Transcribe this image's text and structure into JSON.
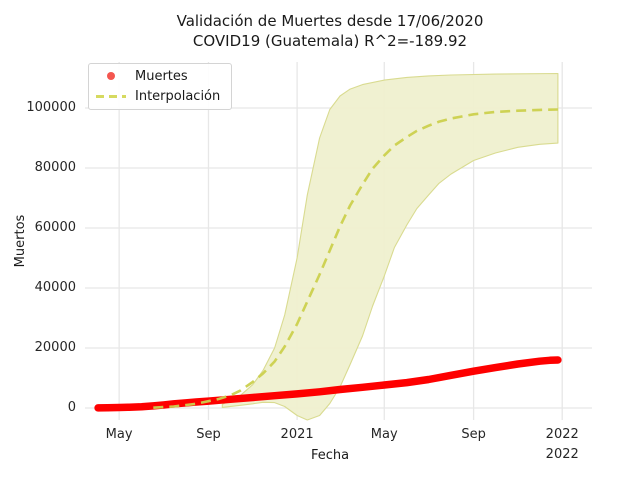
{
  "title": {
    "line1": "Validación de Muertes desde 17/06/2020",
    "line2": "COVID19 (Guatemala) R^2=-189.92"
  },
  "axes": {
    "xlabel": "Fecha",
    "ylabel": "Muertos",
    "x_ticks": [
      {
        "label": "May",
        "date": "2020-05-01"
      },
      {
        "label": "Sep",
        "date": "2020-09-01"
      },
      {
        "label": "2021",
        "date": "2021-01-01"
      },
      {
        "label": "May",
        "date": "2021-05-01"
      },
      {
        "label": "Sep",
        "date": "2021-09-01"
      },
      {
        "label": "2022",
        "date": "2022-01-01"
      }
    ],
    "x_year_annotation": {
      "label": "2022",
      "date": "2022-01-01"
    },
    "y_ticks": [
      0,
      20000,
      40000,
      60000,
      80000,
      100000
    ],
    "x_domain": [
      "2020-03-15",
      "2022-02-11"
    ],
    "y_domain": [
      -4000,
      115333
    ],
    "grid": true,
    "grid_color": "#e7e7e7"
  },
  "legend": [
    {
      "label": "Muertes",
      "type": "scatter",
      "color": "#f4564f"
    },
    {
      "label": "Interpolación",
      "type": "dashed-line",
      "color": "#d6da60"
    }
  ],
  "chart_data": {
    "type": "line",
    "title": "Validación de Muertes desde 17/06/2020 COVID19 (Guatemala) R^2=-189.92",
    "xlabel": "Fecha",
    "ylabel": "Muertos",
    "ylim": [
      -4000,
      115333
    ],
    "legend_position": "upper left",
    "series": [
      {
        "name": "Muertes",
        "style": "scatter",
        "color": "#fe0000",
        "points": [
          [
            "2020-04-02",
            30
          ],
          [
            "2020-04-15",
            80
          ],
          [
            "2020-05-01",
            150
          ],
          [
            "2020-05-15",
            250
          ],
          [
            "2020-06-01",
            400
          ],
          [
            "2020-06-17",
            700
          ],
          [
            "2020-07-01",
            1000
          ],
          [
            "2020-07-15",
            1350
          ],
          [
            "2020-08-01",
            1700
          ],
          [
            "2020-08-15",
            2000
          ],
          [
            "2020-09-01",
            2300
          ],
          [
            "2020-10-01",
            2900
          ],
          [
            "2020-11-01",
            3500
          ],
          [
            "2020-12-01",
            4100
          ],
          [
            "2021-01-01",
            4700
          ],
          [
            "2021-02-01",
            5400
          ],
          [
            "2021-03-01",
            6150
          ],
          [
            "2021-04-01",
            6900
          ],
          [
            "2021-05-01",
            7650
          ],
          [
            "2021-06-01",
            8450
          ],
          [
            "2021-07-01",
            9500
          ],
          [
            "2021-08-01",
            10900
          ],
          [
            "2021-09-01",
            12250
          ],
          [
            "2021-10-01",
            13450
          ],
          [
            "2021-11-01",
            14650
          ],
          [
            "2021-12-01",
            15600
          ],
          [
            "2021-12-15",
            15900
          ],
          [
            "2021-12-26",
            16000
          ]
        ]
      },
      {
        "name": "Interpolación",
        "style": "dashed",
        "color": "#cbd04d",
        "points": [
          [
            "2020-06-17",
            100
          ],
          [
            "2020-07-15",
            500
          ],
          [
            "2020-08-15",
            1400
          ],
          [
            "2020-09-15",
            3000
          ],
          [
            "2020-10-01",
            4200
          ],
          [
            "2020-10-15",
            5800
          ],
          [
            "2020-11-01",
            8700
          ],
          [
            "2020-11-15",
            11500
          ],
          [
            "2020-12-01",
            15500
          ],
          [
            "2020-12-15",
            20500
          ],
          [
            "2021-01-01",
            28000
          ],
          [
            "2021-01-15",
            35500
          ],
          [
            "2021-02-01",
            44500
          ],
          [
            "2021-02-15",
            52500
          ],
          [
            "2021-03-01",
            60500
          ],
          [
            "2021-03-15",
            67500
          ],
          [
            "2021-04-01",
            74500
          ],
          [
            "2021-04-15",
            79800
          ],
          [
            "2021-05-01",
            84200
          ],
          [
            "2021-05-15",
            87500
          ],
          [
            "2021-06-01",
            90300
          ],
          [
            "2021-06-15",
            92400
          ],
          [
            "2021-07-01",
            94100
          ],
          [
            "2021-07-15",
            95400
          ],
          [
            "2021-08-01",
            96500
          ],
          [
            "2021-09-01",
            97900
          ],
          [
            "2021-10-01",
            98700
          ],
          [
            "2021-11-01",
            99100
          ],
          [
            "2021-12-01",
            99350
          ],
          [
            "2021-12-26",
            99500
          ]
        ]
      },
      {
        "name": "confidence-band",
        "style": "band",
        "fill": "#eff0cf",
        "edge": "#d9db90",
        "upper": [
          [
            "2020-09-20",
            1200
          ],
          [
            "2020-10-15",
            4200
          ],
          [
            "2020-11-01",
            7800
          ],
          [
            "2020-11-15",
            12500
          ],
          [
            "2020-12-01",
            20000
          ],
          [
            "2020-12-15",
            31000
          ],
          [
            "2021-01-01",
            50000
          ],
          [
            "2021-01-15",
            71000
          ],
          [
            "2021-02-01",
            90000
          ],
          [
            "2021-02-15",
            99500
          ],
          [
            "2021-03-01",
            104000
          ],
          [
            "2021-03-15",
            106300
          ],
          [
            "2021-04-01",
            107800
          ],
          [
            "2021-05-01",
            109300
          ],
          [
            "2021-06-01",
            110200
          ],
          [
            "2021-07-01",
            110700
          ],
          [
            "2021-08-01",
            111000
          ],
          [
            "2021-10-01",
            111300
          ],
          [
            "2021-12-26",
            111500
          ]
        ],
        "lower": [
          [
            "2020-09-20",
            200
          ],
          [
            "2020-10-15",
            900
          ],
          [
            "2020-11-01",
            1400
          ],
          [
            "2020-11-15",
            1900
          ],
          [
            "2020-12-01",
            1800
          ],
          [
            "2020-12-15",
            500
          ],
          [
            "2021-01-01",
            -2500
          ],
          [
            "2021-01-15",
            -4000
          ],
          [
            "2021-02-01",
            -2500
          ],
          [
            "2021-02-15",
            1500
          ],
          [
            "2021-03-01",
            7000
          ],
          [
            "2021-03-15",
            14500
          ],
          [
            "2021-04-01",
            24000
          ],
          [
            "2021-04-15",
            34000
          ],
          [
            "2021-05-01",
            44000
          ],
          [
            "2021-05-15",
            53500
          ],
          [
            "2021-06-01",
            61000
          ],
          [
            "2021-06-15",
            66500
          ],
          [
            "2021-07-01",
            71000
          ],
          [
            "2021-07-15",
            74800
          ],
          [
            "2021-08-01",
            78000
          ],
          [
            "2021-09-01",
            82500
          ],
          [
            "2021-10-01",
            85000
          ],
          [
            "2021-11-01",
            86900
          ],
          [
            "2021-12-01",
            87900
          ],
          [
            "2021-12-26",
            88300
          ]
        ]
      }
    ]
  }
}
